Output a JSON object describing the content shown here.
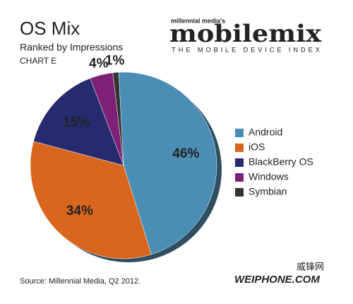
{
  "chart_data": {
    "type": "pie",
    "title": "OS Mix",
    "subtitle": "Ranked by Impressions",
    "chart_label": "CHART E",
    "categories": [
      "Android",
      "iOS",
      "BlackBerry OS",
      "Windows",
      "Symbian"
    ],
    "values": [
      46,
      34,
      15,
      4,
      1
    ],
    "value_labels": [
      "46%",
      "34%",
      "15%",
      "4%",
      "1%"
    ],
    "colors": [
      "#4a8db5",
      "#d9661f",
      "#262a6e",
      "#7e2176",
      "#333333"
    ],
    "legend": "right",
    "source": "Source: Millennial Media, Q2 2012."
  },
  "logo": {
    "owner": "millennial media's",
    "name": "mobilemix",
    "tagline": "THE MOBILE DEVICE INDEX"
  },
  "watermark": {
    "native": "威锋网",
    "latin": "WEIPHONE.COM"
  }
}
